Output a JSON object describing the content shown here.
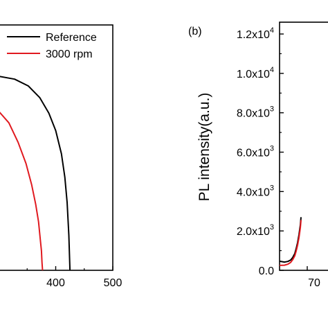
{
  "chart_data": [
    {
      "type": "line",
      "panel_label": "",
      "xlabel": "",
      "ylabel": "",
      "xlim": [
        300,
        500
      ],
      "x_ticks": [
        "400",
        "500"
      ],
      "legend_position": "top-right",
      "series": [
        {
          "name": "Reference",
          "color": "#000000",
          "x": [
            300,
            328,
            352,
            372,
            388,
            400,
            410,
            416,
            420,
            423,
            425
          ],
          "y": [
            1.0,
            0.985,
            0.95,
            0.89,
            0.81,
            0.72,
            0.6,
            0.48,
            0.35,
            0.18,
            0.0
          ]
        },
        {
          "name": "3000 rpm",
          "color": "#e0191f",
          "x": [
            300,
            318,
            334,
            348,
            358,
            365,
            370,
            373,
            375,
            376,
            377
          ],
          "y": [
            0.82,
            0.76,
            0.66,
            0.55,
            0.44,
            0.34,
            0.25,
            0.16,
            0.1,
            0.04,
            0.0
          ]
        }
      ]
    },
    {
      "type": "line",
      "panel_label": "(b)",
      "xlabel": "",
      "ylabel": "PL intensity(a.u.)",
      "xlim": [
        660,
        740
      ],
      "ylim": [
        0,
        12600
      ],
      "x_ticks": [
        "70"
      ],
      "y_ticks": [
        {
          "value": 0,
          "mantissa": "0.0",
          "exp": ""
        },
        {
          "value": 2000,
          "mantissa": "2.0x10",
          "exp": "3"
        },
        {
          "value": 4000,
          "mantissa": "4.0x10",
          "exp": "3"
        },
        {
          "value": 6000,
          "mantissa": "6.0x10",
          "exp": "3"
        },
        {
          "value": 8000,
          "mantissa": "8.0x10",
          "exp": "3"
        },
        {
          "value": 10000,
          "mantissa": "1.0x10",
          "exp": "4"
        },
        {
          "value": 12000,
          "mantissa": "1.2x10",
          "exp": "4"
        }
      ],
      "grid": false,
      "series": [
        {
          "name": "",
          "color": "#000000",
          "x": [
            660,
            667,
            672,
            676,
            679,
            682,
            684,
            686,
            688,
            690,
            691
          ],
          "y": [
            460,
            420,
            450,
            520,
            650,
            850,
            1100,
            1400,
            1800,
            2300,
            2700
          ]
        },
        {
          "name": "",
          "color": "#e0191f",
          "x": [
            660,
            667,
            672,
            676,
            679,
            682,
            684,
            686,
            688,
            690,
            691
          ],
          "y": [
            250,
            260,
            310,
            400,
            540,
            740,
            980,
            1270,
            1650,
            2150,
            2550
          ]
        }
      ]
    }
  ]
}
